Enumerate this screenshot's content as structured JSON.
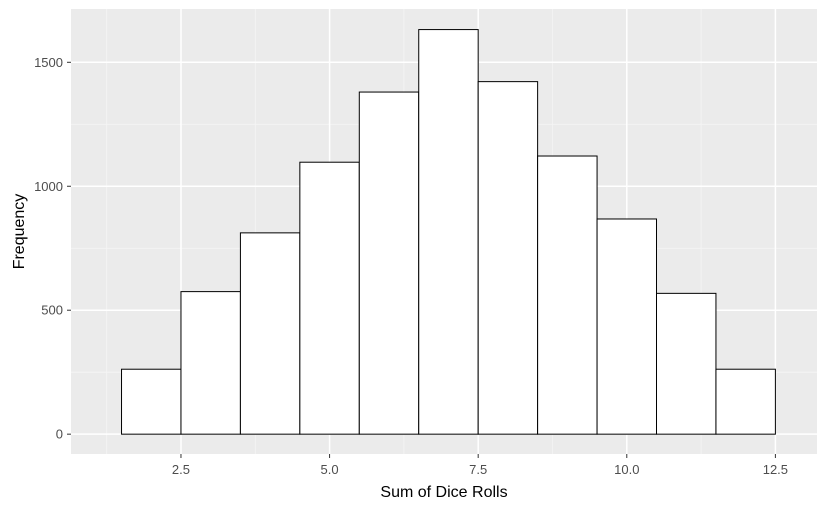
{
  "chart_data": {
    "type": "bar",
    "title": "",
    "xlabel": "Sum of Dice Rolls",
    "ylabel": "Frequency",
    "x_ticks": [
      2.5,
      5.0,
      7.5,
      10.0,
      12.5
    ],
    "x_tick_labels": [
      "2.5",
      "5.0",
      "7.5",
      "10.0",
      "12.5"
    ],
    "y_ticks": [
      0,
      500,
      1000,
      1500
    ],
    "y_tick_labels": [
      "0",
      "500",
      "1000",
      "1500"
    ],
    "xlim": [
      0.65,
      13.2
    ],
    "ylim": [
      -80,
      1715
    ],
    "bin_width": 1,
    "bins": [
      {
        "x": 2,
        "count": 262
      },
      {
        "x": 3,
        "count": 575
      },
      {
        "x": 4,
        "count": 812
      },
      {
        "x": 5,
        "count": 1097
      },
      {
        "x": 6,
        "count": 1380
      },
      {
        "x": 7,
        "count": 1632
      },
      {
        "x": 8,
        "count": 1422
      },
      {
        "x": 9,
        "count": 1122
      },
      {
        "x": 10,
        "count": 868
      },
      {
        "x": 11,
        "count": 568
      },
      {
        "x": 12,
        "count": 262
      }
    ],
    "grid": true,
    "colors": {
      "panel_background": "#ebebeb",
      "grid_major": "#ffffff",
      "grid_minor": "#f5f5f5",
      "bar_fill": "#ffffff",
      "bar_stroke": "#000000",
      "tick_text": "#4d4d4d",
      "axis_title_text": "#000000"
    }
  }
}
